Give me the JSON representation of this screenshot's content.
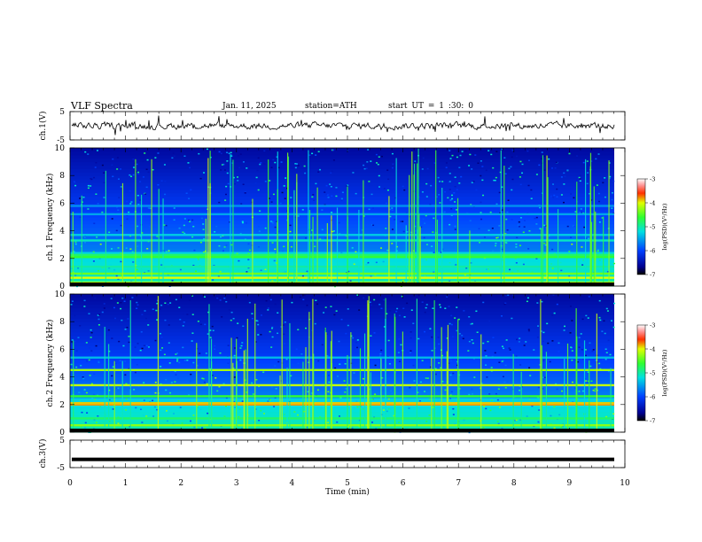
{
  "header": {
    "title": "VLF Spectra",
    "date": "Jan. 11, 2025",
    "station": "station=ATH",
    "start": "start UT = 1 :30: 0"
  },
  "chart_data": [
    {
      "type": "line",
      "panel": "ch1-waveform",
      "ylabel": "ch.1(V)",
      "ylim": [
        -5,
        5
      ],
      "yticks": [
        "5",
        "-5"
      ],
      "xlim": [
        0,
        10
      ],
      "series": [
        {
          "description": "noisy trace around 0 V",
          "values_range": [
            -1.5,
            1.5
          ]
        }
      ]
    },
    {
      "type": "heatmap",
      "panel": "ch1-spectrogram",
      "ylabel": "ch.1 Frequency (kHz)",
      "ylim": [
        0,
        10
      ],
      "yticks": [
        "0",
        "2",
        "4",
        "6",
        "8",
        "10"
      ],
      "xlim": [
        0,
        9.8
      ],
      "colorbar": {
        "label": "log(PSD)(V²/Hz)",
        "ticks": [
          "-3",
          "-4",
          "-5",
          "-6",
          "-7"
        ],
        "range": [
          -7,
          -3
        ]
      },
      "bands_khz": [
        {
          "f": 0.25,
          "level": -4.2
        },
        {
          "f": 0.6,
          "level": -4.0
        },
        {
          "f": 0.9,
          "level": -4.4
        },
        {
          "f": 1.4,
          "level": -5.0
        },
        {
          "f": 2.1,
          "level": -4.6
        },
        {
          "f": 2.25,
          "level": -4.8
        },
        {
          "f": 3.3,
          "level": -5.1
        },
        {
          "f": 3.7,
          "level": -5.3
        },
        {
          "f": 5.2,
          "level": -5.5
        },
        {
          "f": 5.8,
          "level": -5.6
        }
      ]
    },
    {
      "type": "heatmap",
      "panel": "ch2-spectrogram",
      "ylabel": "ch.2 Frequency (kHz)",
      "ylim": [
        0,
        10
      ],
      "yticks": [
        "0",
        "2",
        "4",
        "6",
        "8",
        "10"
      ],
      "xlim": [
        0,
        9.8
      ],
      "colorbar": {
        "label": "log(PSD)(V²/Hz)",
        "ticks": [
          "-3",
          "-4",
          "-5",
          "-6",
          "-7"
        ],
        "range": [
          -7,
          -3
        ]
      },
      "bands_khz": [
        {
          "f": 0.5,
          "level": -4.3
        },
        {
          "f": 1.0,
          "level": -4.8
        },
        {
          "f": 2.0,
          "level": -3.8
        },
        {
          "f": 2.1,
          "level": -3.9
        },
        {
          "f": 2.6,
          "level": -4.6
        },
        {
          "f": 3.4,
          "level": -4.1
        },
        {
          "f": 4.5,
          "level": -4.2
        },
        {
          "f": 5.4,
          "level": -5.4
        }
      ]
    },
    {
      "type": "line",
      "panel": "ch3-waveform",
      "ylabel": "ch.3(V)",
      "ylim": [
        -5,
        5
      ],
      "yticks": [
        "5",
        "-5"
      ],
      "xlim": [
        0,
        10
      ],
      "series": [
        {
          "description": "flat trace",
          "value": -2
        }
      ]
    }
  ],
  "xaxis": {
    "label": "Time (min)",
    "ticks": [
      "0",
      "1",
      "2",
      "3",
      "4",
      "5",
      "6",
      "7",
      "8",
      "9",
      "10"
    ]
  }
}
